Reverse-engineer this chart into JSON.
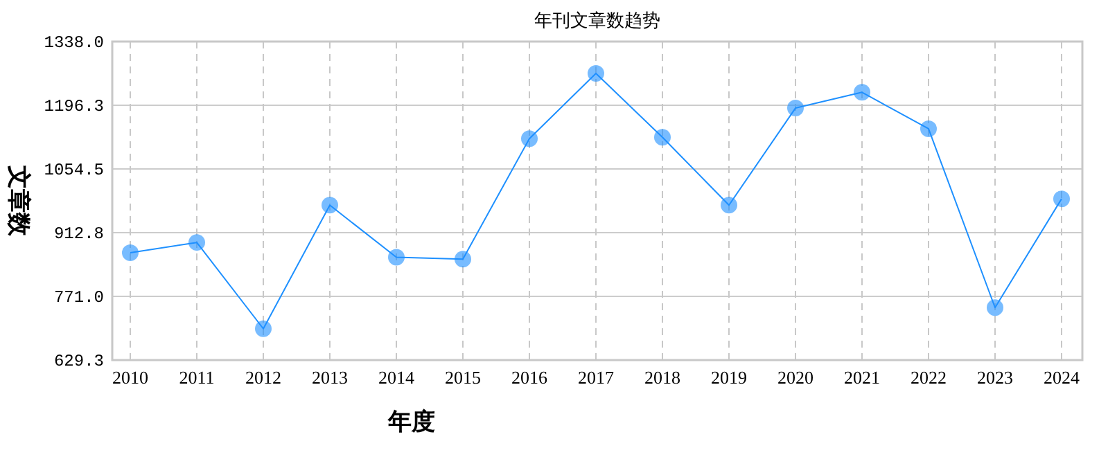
{
  "chart_data": {
    "type": "line",
    "title": "年刊文章数趋势",
    "xlabel": "年度",
    "ylabel": "文章数",
    "categories": [
      "2010",
      "2011",
      "2012",
      "2013",
      "2014",
      "2015",
      "2016",
      "2017",
      "2018",
      "2019",
      "2020",
      "2021",
      "2022",
      "2023",
      "2024"
    ],
    "series": [
      {
        "color": "#1e90ff",
        "values": [
          868,
          891,
          699,
          974,
          858,
          854,
          1122,
          1267,
          1125,
          974,
          1190,
          1225,
          1144,
          746,
          988
        ]
      }
    ],
    "ylim": [
      629.3,
      1338.0
    ],
    "yticks": [
      {
        "value": 629.3,
        "label": "629.3"
      },
      {
        "value": 771.0,
        "label": "771.0"
      },
      {
        "value": 912.8,
        "label": "912.8"
      },
      {
        "value": 1054.5,
        "label": "1054.5"
      },
      {
        "value": 1196.3,
        "label": "1196.3"
      },
      {
        "value": 1338.0,
        "label": "1338.0"
      }
    ],
    "grid": true,
    "marker": "circle"
  }
}
